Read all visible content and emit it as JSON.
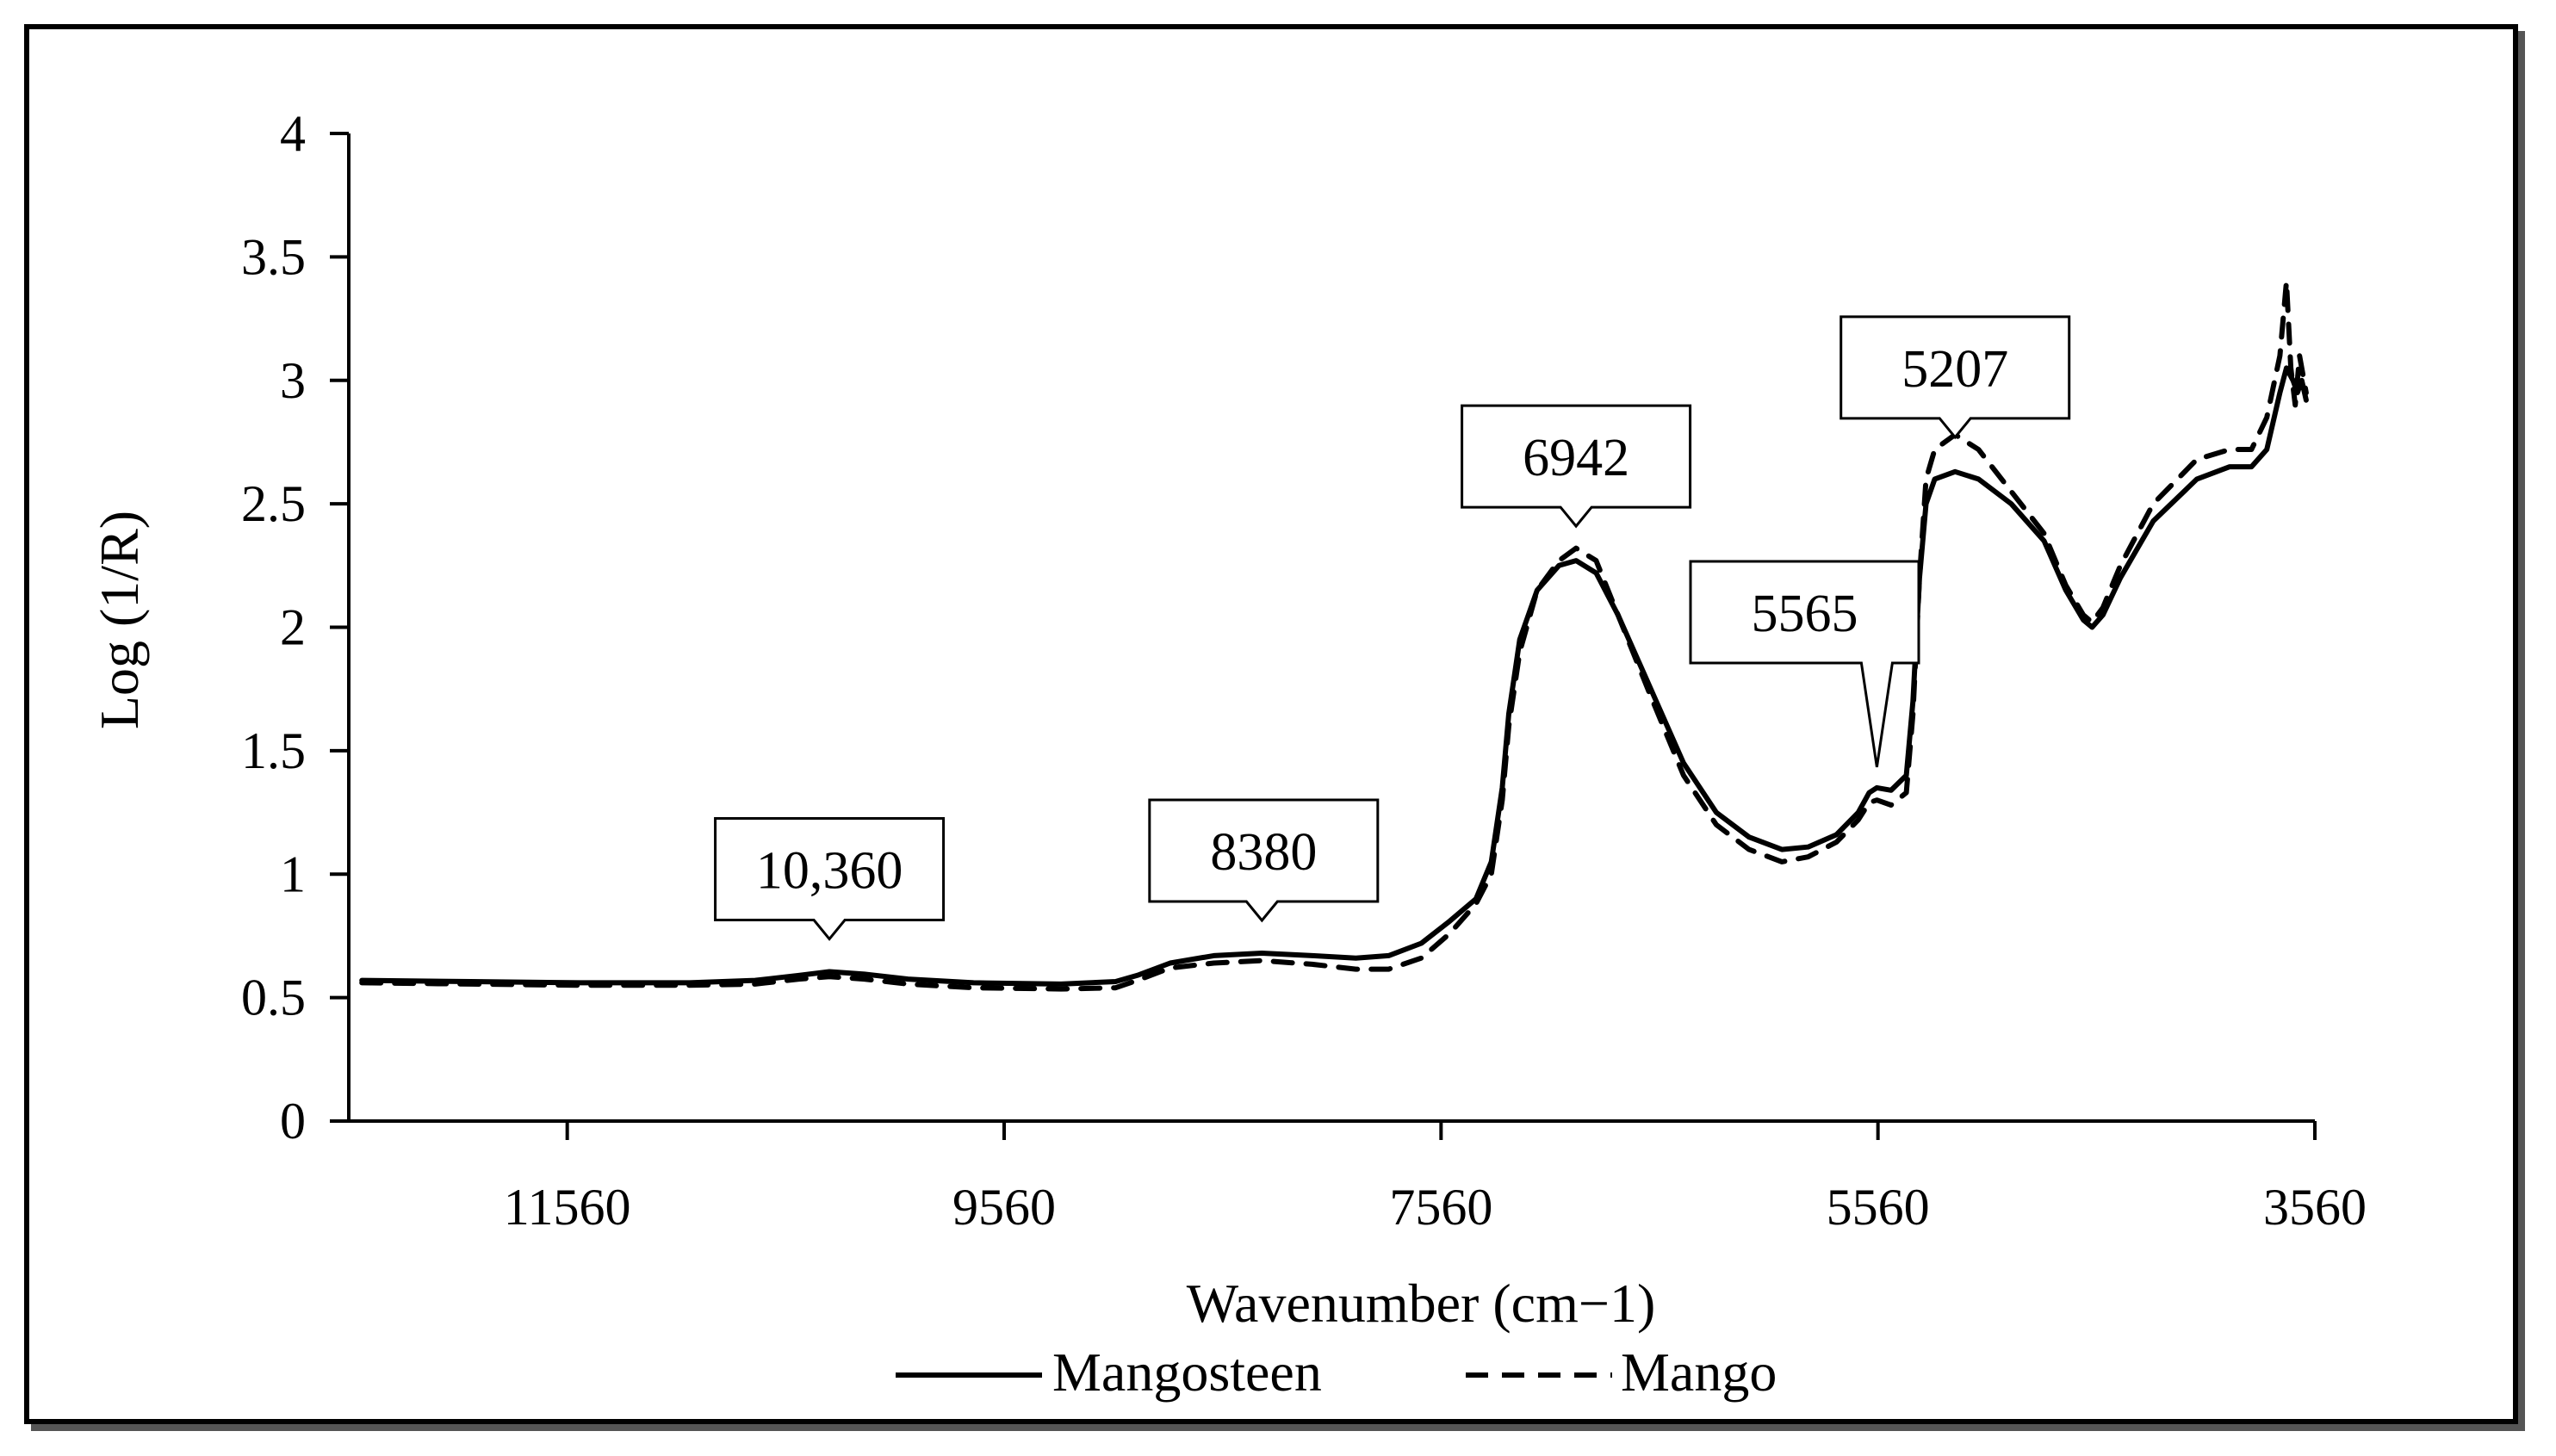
{
  "chart_data": {
    "type": "line",
    "xlabel": "Wavenumber (cm−1)",
    "ylabel": "Log (1/R)",
    "xlim": [
      12560,
      3560
    ],
    "ylim": [
      0,
      4
    ],
    "x_ticks": [
      "11560",
      "9560",
      "7560",
      "5560",
      "3560"
    ],
    "y_ticks": [
      "0",
      "0.5",
      "1",
      "1.5",
      "2",
      "2.5",
      "3",
      "3.5",
      "4"
    ],
    "grid": false,
    "legend_position": "bottom",
    "series": [
      {
        "name": "Mangosteen",
        "style": "solid",
        "points": [
          [
            12500,
            0.57
          ],
          [
            12000,
            0.565
          ],
          [
            11500,
            0.56
          ],
          [
            11000,
            0.56
          ],
          [
            10700,
            0.57
          ],
          [
            10500,
            0.59
          ],
          [
            10360,
            0.605
          ],
          [
            10200,
            0.595
          ],
          [
            10000,
            0.575
          ],
          [
            9700,
            0.56
          ],
          [
            9300,
            0.555
          ],
          [
            9050,
            0.565
          ],
          [
            8950,
            0.59
          ],
          [
            8800,
            0.64
          ],
          [
            8600,
            0.67
          ],
          [
            8380,
            0.68
          ],
          [
            8150,
            0.67
          ],
          [
            7950,
            0.66
          ],
          [
            7800,
            0.67
          ],
          [
            7650,
            0.72
          ],
          [
            7520,
            0.81
          ],
          [
            7400,
            0.9
          ],
          [
            7330,
            1.05
          ],
          [
            7280,
            1.35
          ],
          [
            7250,
            1.65
          ],
          [
            7200,
            1.95
          ],
          [
            7120,
            2.15
          ],
          [
            7020,
            2.25
          ],
          [
            6942,
            2.27
          ],
          [
            6850,
            2.22
          ],
          [
            6750,
            2.05
          ],
          [
            6600,
            1.75
          ],
          [
            6450,
            1.45
          ],
          [
            6300,
            1.25
          ],
          [
            6150,
            1.15
          ],
          [
            6000,
            1.1
          ],
          [
            5880,
            1.11
          ],
          [
            5750,
            1.16
          ],
          [
            5650,
            1.25
          ],
          [
            5600,
            1.33
          ],
          [
            5565,
            1.35
          ],
          [
            5500,
            1.34
          ],
          [
            5430,
            1.4
          ],
          [
            5400,
            1.7
          ],
          [
            5370,
            2.2
          ],
          [
            5340,
            2.5
          ],
          [
            5300,
            2.6
          ],
          [
            5207,
            2.63
          ],
          [
            5100,
            2.6
          ],
          [
            4950,
            2.5
          ],
          [
            4800,
            2.35
          ],
          [
            4700,
            2.15
          ],
          [
            4620,
            2.03
          ],
          [
            4580,
            2.0
          ],
          [
            4530,
            2.05
          ],
          [
            4450,
            2.2
          ],
          [
            4300,
            2.43
          ],
          [
            4100,
            2.6
          ],
          [
            3950,
            2.65
          ],
          [
            3850,
            2.65
          ],
          [
            3780,
            2.72
          ],
          [
            3720,
            2.95
          ],
          [
            3690,
            3.05
          ],
          [
            3660,
            3.0
          ],
          [
            3640,
            2.95
          ],
          [
            3620,
            3.0
          ],
          [
            3600,
            2.92
          ]
        ]
      },
      {
        "name": "Mango",
        "style": "dashed",
        "points": [
          [
            12500,
            0.56
          ],
          [
            12000,
            0.555
          ],
          [
            11500,
            0.55
          ],
          [
            11000,
            0.55
          ],
          [
            10700,
            0.555
          ],
          [
            10500,
            0.575
          ],
          [
            10360,
            0.585
          ],
          [
            10200,
            0.575
          ],
          [
            10000,
            0.555
          ],
          [
            9700,
            0.54
          ],
          [
            9300,
            0.535
          ],
          [
            9050,
            0.54
          ],
          [
            8950,
            0.57
          ],
          [
            8800,
            0.62
          ],
          [
            8600,
            0.64
          ],
          [
            8380,
            0.65
          ],
          [
            8150,
            0.635
          ],
          [
            7950,
            0.615
          ],
          [
            7800,
            0.615
          ],
          [
            7650,
            0.66
          ],
          [
            7520,
            0.76
          ],
          [
            7400,
            0.88
          ],
          [
            7330,
            1.0
          ],
          [
            7280,
            1.3
          ],
          [
            7250,
            1.6
          ],
          [
            7200,
            1.9
          ],
          [
            7120,
            2.15
          ],
          [
            7020,
            2.27
          ],
          [
            6942,
            2.32
          ],
          [
            6850,
            2.27
          ],
          [
            6750,
            2.05
          ],
          [
            6600,
            1.72
          ],
          [
            6450,
            1.4
          ],
          [
            6300,
            1.2
          ],
          [
            6150,
            1.1
          ],
          [
            6000,
            1.05
          ],
          [
            5880,
            1.07
          ],
          [
            5750,
            1.13
          ],
          [
            5650,
            1.22
          ],
          [
            5600,
            1.29
          ],
          [
            5565,
            1.3
          ],
          [
            5500,
            1.28
          ],
          [
            5430,
            1.33
          ],
          [
            5400,
            1.65
          ],
          [
            5370,
            2.2
          ],
          [
            5340,
            2.6
          ],
          [
            5300,
            2.72
          ],
          [
            5207,
            2.78
          ],
          [
            5100,
            2.72
          ],
          [
            4950,
            2.55
          ],
          [
            4800,
            2.38
          ],
          [
            4700,
            2.17
          ],
          [
            4620,
            2.05
          ],
          [
            4580,
            2.02
          ],
          [
            4530,
            2.08
          ],
          [
            4450,
            2.25
          ],
          [
            4300,
            2.5
          ],
          [
            4100,
            2.68
          ],
          [
            3950,
            2.72
          ],
          [
            3850,
            2.72
          ],
          [
            3780,
            2.85
          ],
          [
            3720,
            3.1
          ],
          [
            3690,
            3.4
          ],
          [
            3670,
            3.05
          ],
          [
            3650,
            2.9
          ],
          [
            3630,
            3.1
          ],
          [
            3600,
            2.95
          ]
        ]
      }
    ],
    "annotations": [
      {
        "label": "10,360",
        "x": 10360,
        "y": 0.605
      },
      {
        "label": "8380",
        "x": 8380,
        "y": 0.68
      },
      {
        "label": "6942",
        "x": 6942,
        "y": 2.27
      },
      {
        "label": "5565",
        "x": 5565,
        "y": 1.35
      },
      {
        "label": "5207",
        "x": 5207,
        "y": 2.63
      }
    ]
  }
}
